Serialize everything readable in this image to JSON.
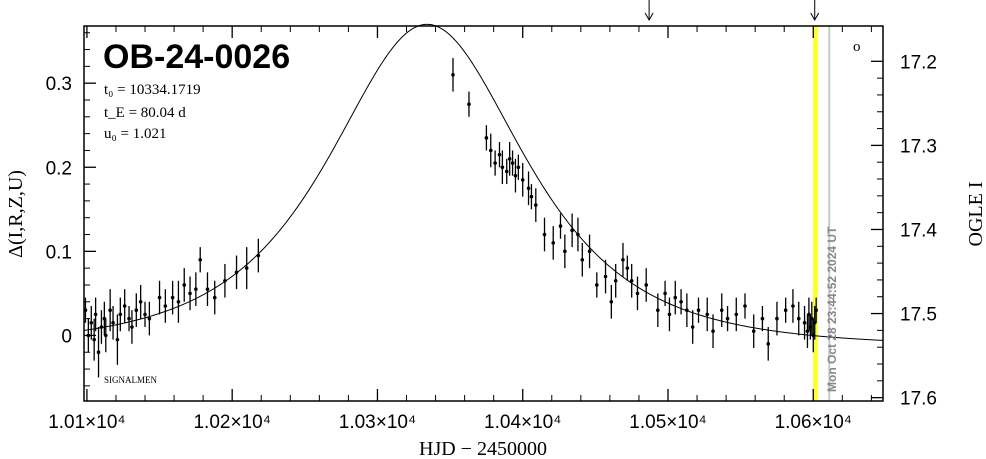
{
  "chart_data": {
    "type": "scatter",
    "title": "OB-24-0026",
    "params": {
      "t0": "t₀ = 10334.1719",
      "tE": "t_E = 80.04 d",
      "u0": "u₀ = 1.021"
    },
    "credit": "SIGNALMEN",
    "timestamp": "Mon Oct 28 23:44:52 2024 UT",
    "circle_marker": "o",
    "xlabel": "HJD − 2450000",
    "ylabel_left": "Δ(I,R,Z,U)",
    "ylabel_right": "OGLE I",
    "xlim": [
      10098,
      10648
    ],
    "ylim_left": [
      -0.078,
      0.368
    ],
    "xticks": [
      {
        "value": 10100,
        "label": "1.01×10⁴"
      },
      {
        "value": 10200,
        "label": "1.02×10⁴"
      },
      {
        "value": 10300,
        "label": "1.03×10⁴"
      },
      {
        "value": 10400,
        "label": "1.04×10⁴"
      },
      {
        "value": 10500,
        "label": "1.05×10⁴"
      },
      {
        "value": 10600,
        "label": "1.06×10⁴"
      }
    ],
    "yticks_left": [
      {
        "value": 0,
        "label": "0"
      },
      {
        "value": 0.1,
        "label": "0.1"
      },
      {
        "value": 0.2,
        "label": "0.2"
      },
      {
        "value": 0.3,
        "label": "0.3"
      }
    ],
    "yticks_right": [
      {
        "value": 17.2,
        "label": "17.2",
        "left_equiv": 0.326
      },
      {
        "value": 17.3,
        "label": "17.3",
        "left_equiv": 0.226
      },
      {
        "value": 17.4,
        "label": "17.4",
        "left_equiv": 0.126
      },
      {
        "value": 17.5,
        "label": "17.5",
        "left_equiv": 0.026
      },
      {
        "value": 17.6,
        "label": "17.6",
        "left_equiv": -0.074
      }
    ],
    "model": {
      "t0": 10334.1719,
      "tE": 80.04,
      "u0": 1.021,
      "offset": -0.014,
      "scale": 1.25,
      "x_from": 10098,
      "x_to": 10648
    },
    "current_time_line": {
      "x": 10601.5,
      "color": "#ffff33"
    },
    "now_line": {
      "x": 10611,
      "color": "#c8c8c8"
    },
    "arrows_x": [
      10487,
      10601
    ],
    "points": [
      [
        10099,
        0.03,
        0.015
      ],
      [
        10101,
        0.0,
        0.02
      ],
      [
        10103,
        0.015,
        0.02
      ],
      [
        10105,
        -0.005,
        0.025
      ],
      [
        10106,
        0.025,
        0.02
      ],
      [
        10108,
        -0.02,
        0.03
      ],
      [
        10110,
        0.01,
        0.02
      ],
      [
        10112,
        0.02,
        0.02
      ],
      [
        10113,
        0.0,
        0.02
      ],
      [
        10116,
        0.03,
        0.025
      ],
      [
        10118,
        0.015,
        0.02
      ],
      [
        10121,
        -0.005,
        0.03
      ],
      [
        10123,
        0.025,
        0.02
      ],
      [
        10126,
        0.035,
        0.02
      ],
      [
        10129,
        0.02,
        0.015
      ],
      [
        10131,
        0.01,
        0.02
      ],
      [
        10134,
        0.03,
        0.02
      ],
      [
        10137,
        0.04,
        0.02
      ],
      [
        10140,
        0.025,
        0.015
      ],
      [
        10143,
        0.02,
        0.02
      ],
      [
        10150,
        0.045,
        0.02
      ],
      [
        10154,
        0.035,
        0.02
      ],
      [
        10159,
        0.045,
        0.02
      ],
      [
        10163,
        0.04,
        0.025
      ],
      [
        10167,
        0.06,
        0.02
      ],
      [
        10171,
        0.05,
        0.02
      ],
      [
        10175,
        0.055,
        0.02
      ],
      [
        10178,
        0.09,
        0.015
      ],
      [
        10183,
        0.055,
        0.02
      ],
      [
        10188,
        0.045,
        0.02
      ],
      [
        10195,
        0.065,
        0.02
      ],
      [
        10203,
        0.075,
        0.02
      ],
      [
        10210,
        0.08,
        0.025
      ],
      [
        10218,
        0.095,
        0.02
      ],
      [
        10352,
        0.31,
        0.02
      ],
      [
        10363,
        0.275,
        0.015
      ],
      [
        10375,
        0.235,
        0.015
      ],
      [
        10378,
        0.22,
        0.02
      ],
      [
        10381,
        0.205,
        0.015
      ],
      [
        10384,
        0.215,
        0.015
      ],
      [
        10386,
        0.2,
        0.02
      ],
      [
        10389,
        0.195,
        0.015
      ],
      [
        10391,
        0.21,
        0.02
      ],
      [
        10393,
        0.205,
        0.015
      ],
      [
        10395,
        0.19,
        0.02
      ],
      [
        10397,
        0.2,
        0.015
      ],
      [
        10400,
        0.185,
        0.02
      ],
      [
        10404,
        0.175,
        0.02
      ],
      [
        10406,
        0.165,
        0.015
      ],
      [
        10409,
        0.155,
        0.02
      ],
      [
        10415,
        0.12,
        0.02
      ],
      [
        10421,
        0.11,
        0.02
      ],
      [
        10426,
        0.13,
        0.015
      ],
      [
        10429,
        0.1,
        0.02
      ],
      [
        10434,
        0.125,
        0.02
      ],
      [
        10438,
        0.12,
        0.02
      ],
      [
        10441,
        0.09,
        0.02
      ],
      [
        10446,
        0.1,
        0.02
      ],
      [
        10451,
        0.06,
        0.015
      ],
      [
        10457,
        0.07,
        0.02
      ],
      [
        10461,
        0.04,
        0.02
      ],
      [
        10464,
        0.065,
        0.02
      ],
      [
        10469,
        0.09,
        0.02
      ],
      [
        10472,
        0.08,
        0.015
      ],
      [
        10475,
        0.065,
        0.02
      ],
      [
        10479,
        0.05,
        0.02
      ],
      [
        10485,
        0.06,
        0.02
      ],
      [
        10493,
        0.03,
        0.02
      ],
      [
        10498,
        0.05,
        0.015
      ],
      [
        10501,
        0.025,
        0.02
      ],
      [
        10505,
        0.045,
        0.02
      ],
      [
        10509,
        0.04,
        0.015
      ],
      [
        10513,
        0.03,
        0.02
      ],
      [
        10517,
        0.01,
        0.02
      ],
      [
        10521,
        0.03,
        0.015
      ],
      [
        10527,
        0.025,
        0.02
      ],
      [
        10531,
        0.005,
        0.02
      ],
      [
        10537,
        0.03,
        0.02
      ],
      [
        10541,
        0.02,
        0.015
      ],
      [
        10547,
        0.025,
        0.02
      ],
      [
        10553,
        0.035,
        0.015
      ],
      [
        10559,
        0.005,
        0.02
      ],
      [
        10565,
        0.02,
        0.015
      ],
      [
        10569,
        -0.01,
        0.02
      ],
      [
        10575,
        0.02,
        0.02
      ],
      [
        10581,
        0.03,
        0.015
      ],
      [
        10586,
        0.035,
        0.02
      ],
      [
        10590,
        0.02,
        0.02
      ],
      [
        10594,
        0.015,
        0.02
      ],
      [
        10596,
        0.005,
        0.02
      ],
      [
        10597,
        0.025,
        0.02
      ],
      [
        10598,
        0.01,
        0.015
      ],
      [
        10599,
        0.02,
        0.02
      ],
      [
        10600,
        0.0,
        0.02
      ],
      [
        10601,
        0.015,
        0.02
      ],
      [
        10602,
        0.03,
        0.015
      ]
    ],
    "grid": false
  }
}
